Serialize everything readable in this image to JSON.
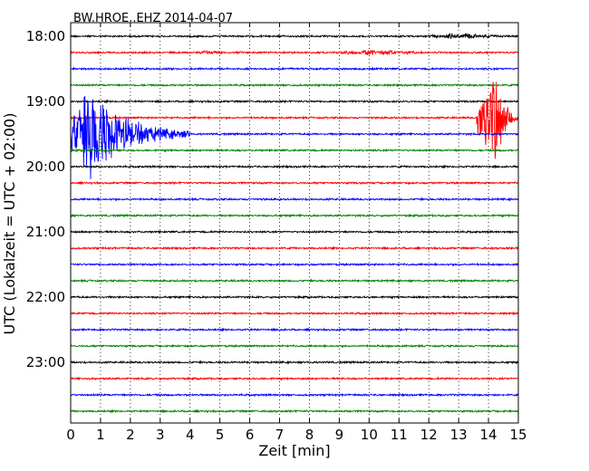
{
  "chart_data": {
    "type": "line",
    "title": "BW.HROE..EHZ 2014-04-07",
    "xlabel": "Zeit  [min]",
    "ylabel": "UTC (Lokalzeit = UTC + 02:00)",
    "xlim": [
      0,
      15
    ],
    "x_ticks": [
      "0",
      "1",
      "2",
      "3",
      "4",
      "5",
      "6",
      "7",
      "8",
      "9",
      "10",
      "11",
      "12",
      "13",
      "14",
      "15"
    ],
    "y_ticks": [
      "18:00",
      "19:00",
      "20:00",
      "21:00",
      "22:00",
      "23:00"
    ],
    "grid": "vertical dotted",
    "trace_color_cycle": [
      "#000000",
      "#ff0000",
      "#0000ff",
      "#008000"
    ],
    "trace_start_times": [
      "18:00",
      "18:15",
      "18:30",
      "18:45",
      "19:00",
      "19:15",
      "19:30",
      "19:45",
      "20:00",
      "20:15",
      "20:30",
      "20:45",
      "21:00",
      "21:15",
      "21:30",
      "21:45",
      "22:00",
      "22:15",
      "22:30",
      "22:45",
      "23:00",
      "23:15",
      "23:30",
      "23:45"
    ],
    "events": [
      {
        "trace_start": "18:15",
        "color": "#ff0000",
        "minute_start": 4.2,
        "minute_end": 5.2,
        "amplitude": "small"
      },
      {
        "trace_start": "18:15",
        "color": "#ff0000",
        "minute_start": 8.7,
        "minute_end": 11.8,
        "amplitude": "small"
      },
      {
        "trace_start": "18:00",
        "color": "#000000",
        "minute_start": 11.8,
        "minute_end": 14.5,
        "amplitude": "small"
      },
      {
        "trace_start": "19:30",
        "color": "#0000ff",
        "minute_start": 0.0,
        "minute_end": 4.0,
        "amplitude": "large",
        "peak_minute": 0.7
      },
      {
        "trace_start": "19:15",
        "color": "#ff0000",
        "minute_start": 13.6,
        "minute_end": 15.0,
        "amplitude": "large",
        "peak_minute": 14.3
      }
    ]
  }
}
